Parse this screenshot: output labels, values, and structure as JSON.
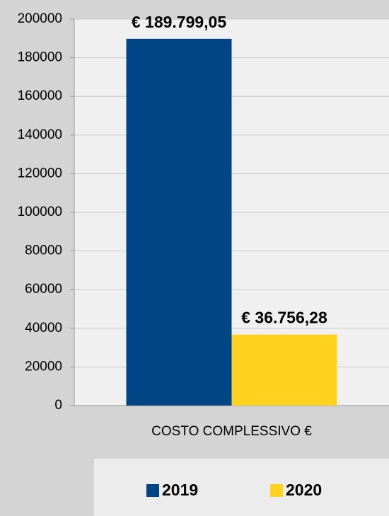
{
  "chart_data": {
    "type": "bar",
    "categories": [
      "COSTO COMPLESSIVO €"
    ],
    "series": [
      {
        "name": "2019",
        "color": "#004586",
        "values": [
          189799.05
        ],
        "value_labels": [
          "€ 189.799,05"
        ]
      },
      {
        "name": "2020",
        "color": "#ffd320",
        "values": [
          36756.28
        ],
        "value_labels": [
          "€ 36.756,28"
        ]
      }
    ],
    "ylim": [
      0,
      200000
    ],
    "yticks": [
      0,
      20000,
      40000,
      60000,
      80000,
      100000,
      120000,
      140000,
      160000,
      180000,
      200000
    ],
    "grid": true,
    "legend": "bottom"
  }
}
